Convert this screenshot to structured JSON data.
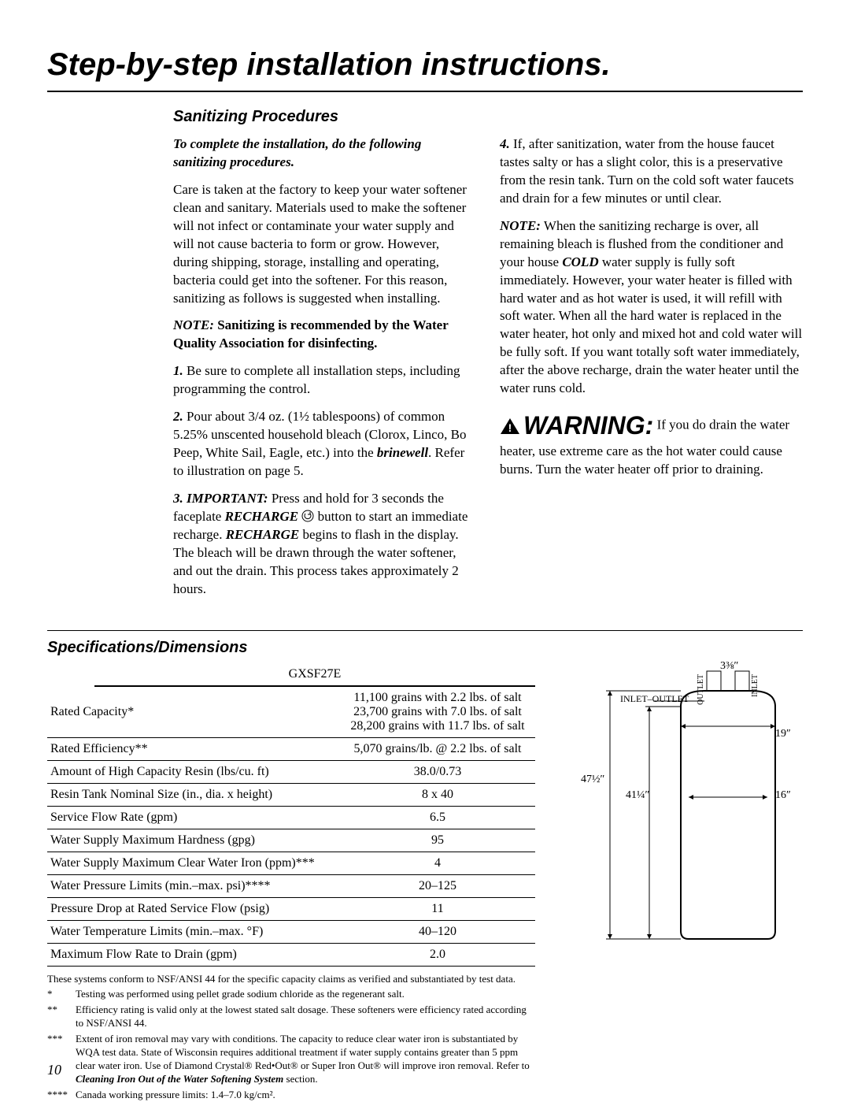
{
  "title": "Step-by-step installation instructions.",
  "section1_heading": "Sanitizing Procedures",
  "col1": {
    "intro": "To complete the installation, do the following sanitizing procedures.",
    "para1": "Care is taken at the factory to keep your water softener clean and sanitary. Materials used to make the softener will not infect or contaminate your water supply and will not cause bacteria to form or grow. However, during shipping, storage, installing and operating, bacteria could get into the softener. For this reason, sanitizing as follows is suggested when installing.",
    "note_label": "NOTE:",
    "note_text": " Sanitizing is recommended by the Water Quality Association for disinfecting.",
    "step1_num": "1.",
    "step1": " Be sure to complete all installation steps, including programming the control.",
    "step2_num": "2.",
    "step2a": " Pour about 3/4 oz. (1½ tablespoons) of common 5.25% unscented household bleach (Clorox, Linco, Bo Peep, White Sail, Eagle, etc.) into the ",
    "brinewell": "brinewell",
    "step2b": ". Refer to illustration on page 5.",
    "step3_num": "3.",
    "important": " IMPORTANT:",
    "step3a": " Press and hold for 3 seconds the faceplate ",
    "recharge": "RECHARGE",
    "step3b": " button to start an immediate recharge. ",
    "recharge2": "RECHARGE",
    "step3c": " begins to flash in the display. The bleach will be drawn through the water softener, and out the drain. This process takes approximately 2 hours."
  },
  "col2": {
    "step4_num": "4.",
    "step4": " If, after sanitization, water from the house faucet tastes salty or has a slight color, this is a preservative from the resin tank. Turn on the cold soft water faucets and drain for a few minutes or until clear.",
    "note_label": "NOTE:",
    "note_a": " When the sanitizing recharge is over, all remaining bleach is flushed from the conditioner and your house ",
    "cold": "COLD",
    "note_b": " water supply is fully soft immediately. However, your water heater is filled with hard water and as hot water is used, it will refill with soft water. When all the hard water is replaced in the water heater, hot only and mixed hot and cold water will be fully soft. If you want totally soft water immediately, after the above recharge, drain the water heater until the water runs cold.",
    "warning_label": "WARNING:",
    "warning_text": " If you do drain the water heater, use extreme care as the hot water could cause burns. Turn the water heater off prior to draining."
  },
  "section2_heading": "Specifications/Dimensions",
  "spec_model": "GXSF27E",
  "spec_rows": [
    {
      "label": "Rated Capacity*",
      "value": "11,100 grains with 2.2 lbs. of salt\n23,700 grains with 7.0 lbs. of salt\n28,200 grains with 11.7 lbs. of salt"
    },
    {
      "label": "Rated Efficiency**",
      "value": "5,070 grains/lb. @ 2.2 lbs. of salt"
    },
    {
      "label": "Amount of High Capacity Resin (lbs/cu. ft)",
      "value": "38.0/0.73"
    },
    {
      "label": "Resin Tank Nominal Size (in., dia. x height)",
      "value": "8 x 40"
    },
    {
      "label": "Service Flow Rate (gpm)",
      "value": "6.5"
    },
    {
      "label": "Water Supply Maximum Hardness (gpg)",
      "value": "95"
    },
    {
      "label": "Water Supply Maximum Clear Water Iron (ppm)***",
      "value": "4"
    },
    {
      "label": "Water Pressure Limits (min.–max. psi)****",
      "value": "20–125"
    },
    {
      "label": "Pressure Drop at Rated Service Flow (psig)",
      "value": "11"
    },
    {
      "label": "Water Temperature Limits (min.–max. °F)",
      "value": "40–120"
    },
    {
      "label": "Maximum Flow Rate to Drain (gpm)",
      "value": "2.0"
    }
  ],
  "footnotes": {
    "pre": "These systems conform to NSF/ANSI 44 for the specific capacity claims as verified and substantiated by test data.",
    "f1": "Testing was performed using pellet grade sodium chloride as the regenerant salt.",
    "f2": "Efficiency rating is valid only at the lowest stated salt dosage. These softeners were efficiency rated according to NSF/ANSI 44.",
    "f3a": "Extent of iron removal may vary with conditions. The capacity to reduce clear water iron is substantiated by WQA test data. State of Wisconsin requires additional treatment if water supply contains greater than 5 ppm clear water iron. Use of Diamond Crystal® Red•Out® or Super Iron Out® will improve iron removal. Refer to ",
    "f3b": "Cleaning Iron Out of the Water Softening System",
    "f3c": " section.",
    "f4": "Canada working pressure limits: 1.4–7.0 kg/cm²."
  },
  "diagram": {
    "top": "3⅜″",
    "outlet": "OUTLET",
    "inlet": "INLET",
    "inlet_outlet": "INLET–OUTLET",
    "w19": "19″",
    "h47": "47½″",
    "h41": "41¼″",
    "w16": "16″"
  },
  "page": "10"
}
